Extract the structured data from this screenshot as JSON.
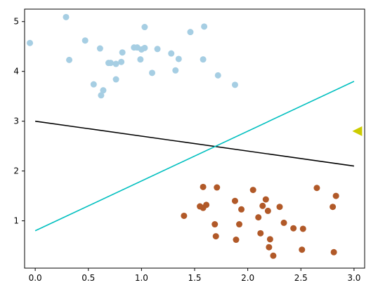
{
  "chart_data": {
    "type": "scatter",
    "xlim": [
      -0.1,
      3.1
    ],
    "ylim": [
      0.05,
      5.25
    ],
    "x_ticks": [
      0.0,
      0.5,
      1.0,
      1.5,
      2.0,
      2.5,
      3.0
    ],
    "x_tick_labels": [
      "0.0",
      "0.5",
      "1.0",
      "1.5",
      "2.0",
      "2.5",
      "3.0"
    ],
    "y_ticks": [
      1,
      2,
      3,
      4,
      5
    ],
    "y_tick_labels": [
      "1",
      "2",
      "3",
      "4",
      "5"
    ],
    "grid": false,
    "series": [
      {
        "kind": "scatter",
        "color": "#a6cee3",
        "points": [
          [
            -0.05,
            4.57
          ],
          [
            0.29,
            5.09
          ],
          [
            0.32,
            4.23
          ],
          [
            0.47,
            4.62
          ],
          [
            0.55,
            3.74
          ],
          [
            0.61,
            4.46
          ],
          [
            0.62,
            3.52
          ],
          [
            0.64,
            3.62
          ],
          [
            0.69,
            4.17
          ],
          [
            0.71,
            4.17
          ],
          [
            0.76,
            3.84
          ],
          [
            0.76,
            4.15
          ],
          [
            0.81,
            4.19
          ],
          [
            0.82,
            4.38
          ],
          [
            0.93,
            4.48
          ],
          [
            0.96,
            4.48
          ],
          [
            0.99,
            4.24
          ],
          [
            1.0,
            4.44
          ],
          [
            1.03,
            4.89
          ],
          [
            1.03,
            4.47
          ],
          [
            1.1,
            3.97
          ],
          [
            1.15,
            4.45
          ],
          [
            1.28,
            4.36
          ],
          [
            1.32,
            4.02
          ],
          [
            1.35,
            4.25
          ],
          [
            1.46,
            4.79
          ],
          [
            1.58,
            4.24
          ],
          [
            1.59,
            4.9
          ],
          [
            1.72,
            3.92
          ],
          [
            1.88,
            3.73
          ]
        ]
      },
      {
        "kind": "scatter",
        "color": "#b15928",
        "points": [
          [
            1.4,
            1.1
          ],
          [
            1.55,
            1.29
          ],
          [
            1.58,
            1.68
          ],
          [
            1.58,
            1.26
          ],
          [
            1.61,
            1.32
          ],
          [
            1.69,
            0.93
          ],
          [
            1.7,
            0.69
          ],
          [
            1.71,
            1.67
          ],
          [
            1.88,
            1.4
          ],
          [
            1.89,
            0.62
          ],
          [
            1.92,
            0.93
          ],
          [
            1.94,
            1.23
          ],
          [
            2.05,
            1.62
          ],
          [
            2.1,
            1.07
          ],
          [
            2.12,
            0.75
          ],
          [
            2.14,
            1.3
          ],
          [
            2.17,
            1.43
          ],
          [
            2.19,
            1.2
          ],
          [
            2.2,
            0.47
          ],
          [
            2.21,
            0.63
          ],
          [
            2.24,
            0.3
          ],
          [
            2.3,
            1.28
          ],
          [
            2.34,
            0.96
          ],
          [
            2.43,
            0.85
          ],
          [
            2.51,
            0.42
          ],
          [
            2.52,
            0.84
          ],
          [
            2.65,
            1.66
          ],
          [
            2.8,
            1.28
          ],
          [
            2.81,
            0.37
          ],
          [
            2.83,
            1.5
          ]
        ]
      },
      {
        "kind": "line",
        "color": "#000000",
        "points": [
          [
            0.0,
            3.0
          ],
          [
            3.0,
            2.1
          ]
        ]
      },
      {
        "kind": "line",
        "color": "#00bfbf",
        "points": [
          [
            0.0,
            0.8
          ],
          [
            3.0,
            3.8
          ]
        ]
      },
      {
        "kind": "marker",
        "shape": "triangle-left",
        "color": "#cccc00",
        "points": [
          [
            3.03,
            2.8
          ]
        ]
      }
    ]
  }
}
